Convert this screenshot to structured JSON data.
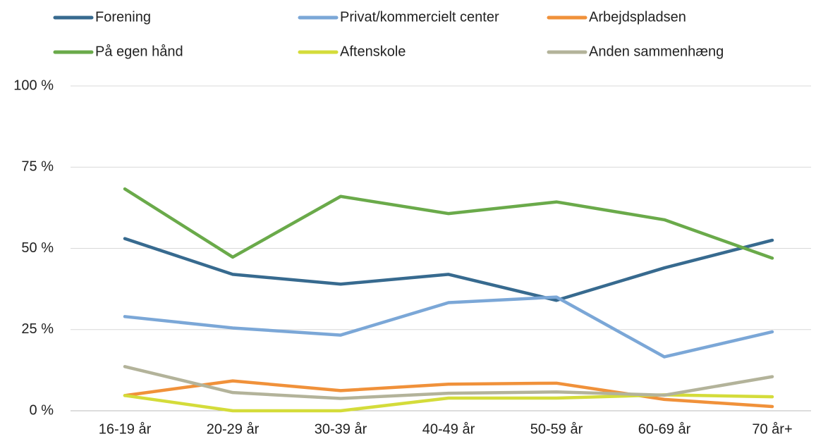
{
  "chart_data": {
    "type": "line",
    "categories": [
      "16-19 år",
      "20-29 år",
      "30-39 år",
      "40-49 år",
      "50-59 år",
      "60-69 år",
      "70 år+"
    ],
    "series": [
      {
        "name": "Forening",
        "color": "#376a8f",
        "values": [
          53,
          42,
          39,
          42,
          34,
          44,
          52.5
        ]
      },
      {
        "name": "Privat/kommercielt center",
        "color": "#7ba7d7",
        "values": [
          29,
          25.5,
          23.3,
          33.3,
          35,
          16.6,
          24.3
        ]
      },
      {
        "name": "Arbejdspladsen",
        "color": "#f0913a",
        "values": [
          4.7,
          9.2,
          6.2,
          8.2,
          8.5,
          3.5,
          1.3
        ]
      },
      {
        "name": "På egen hånd",
        "color": "#6aaa4a",
        "values": [
          68.3,
          47.3,
          66,
          60.7,
          64.3,
          58.8,
          47
        ]
      },
      {
        "name": "Aftenskole",
        "color": "#d4dc3a",
        "values": [
          4.7,
          0,
          0,
          3.9,
          3.9,
          4.9,
          4.3
        ]
      },
      {
        "name": "Anden sammenhæng",
        "color": "#b3b39a",
        "values": [
          13.6,
          5.6,
          3.8,
          5.4,
          5.8,
          4.8,
          10.5
        ]
      }
    ],
    "ylim": [
      0,
      100
    ],
    "yticks": [
      {
        "value": 0,
        "label": "0 %"
      },
      {
        "value": 25,
        "label": "25 %"
      },
      {
        "value": 50,
        "label": "50 %"
      },
      {
        "value": 75,
        "label": "75 %"
      },
      {
        "value": 100,
        "label": "100 %"
      }
    ],
    "grid": true,
    "legend": "top"
  }
}
